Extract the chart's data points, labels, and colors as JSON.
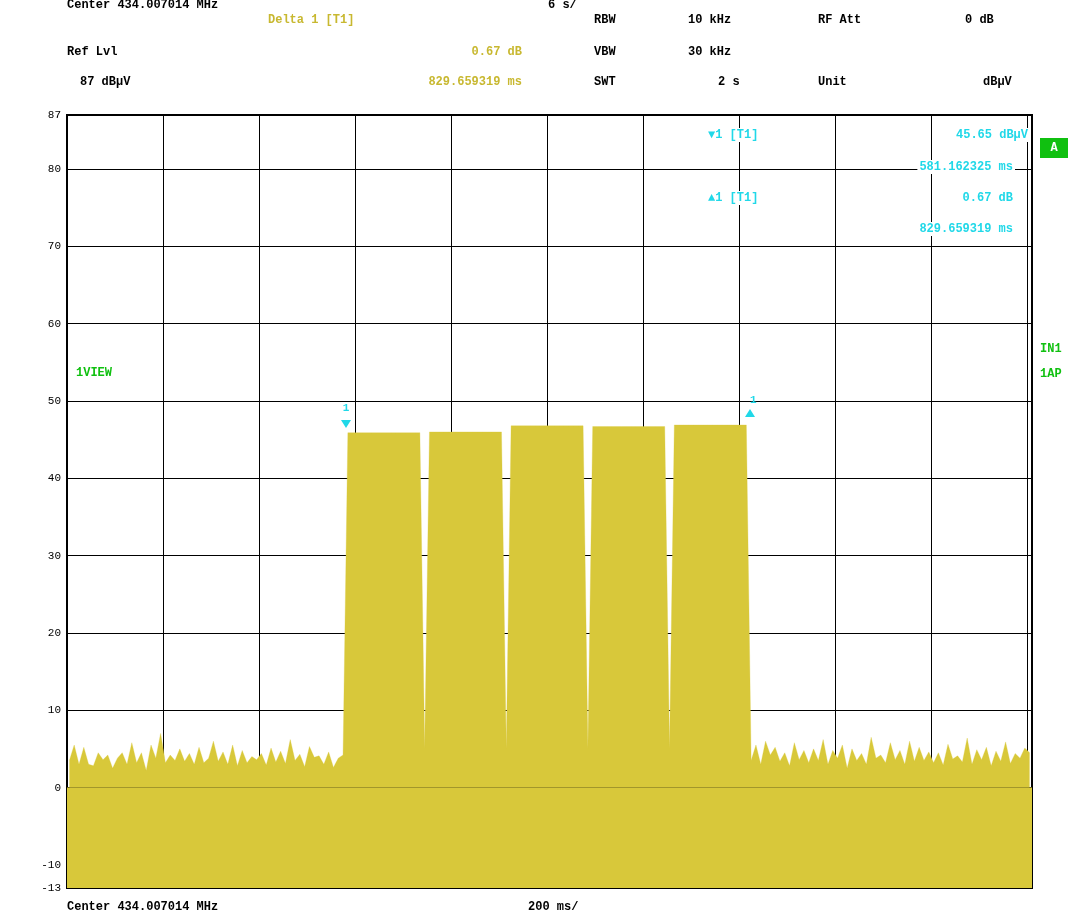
{
  "chart_data": {
    "type": "area",
    "categories": [
      null,
      null,
      null,
      null,
      null,
      null,
      null,
      null,
      null,
      null,
      null,
      null,
      null,
      null,
      null,
      null,
      null,
      null,
      null,
      null,
      null,
      null,
      null,
      null,
      null,
      null,
      null,
      null,
      null,
      null,
      null,
      null,
      null,
      null,
      null,
      null,
      null,
      null,
      null,
      null,
      null,
      null,
      null,
      null,
      null,
      null,
      null,
      null,
      null,
      null,
      null,
      null,
      null,
      null,
      null,
      null,
      null,
      null,
      null,
      null,
      null,
      null,
      null,
      null,
      null,
      null,
      null,
      null,
      null,
      null,
      null,
      null,
      null,
      null,
      null,
      null,
      null,
      null,
      null,
      null,
      null,
      null,
      null,
      null,
      null,
      null,
      null,
      null,
      null,
      null,
      null,
      null,
      null,
      null,
      null,
      null,
      null,
      null,
      null,
      null,
      null,
      null,
      null,
      null,
      null,
      null,
      null,
      null,
      null,
      null,
      null,
      null,
      null,
      null,
      null,
      null,
      null,
      null,
      null,
      null,
      null,
      null,
      null,
      null,
      null,
      null,
      null,
      null,
      null,
      null,
      null,
      null,
      null,
      null,
      null,
      null,
      null,
      null,
      null,
      null,
      null,
      null,
      null,
      null,
      null,
      null,
      null,
      null,
      null,
      null,
      null,
      null,
      null,
      null,
      null,
      null,
      null,
      null,
      null,
      null,
      null,
      null,
      null,
      null,
      null,
      null,
      null,
      null,
      null,
      null,
      null,
      null,
      null,
      null,
      null,
      null,
      null,
      null,
      null,
      null,
      null,
      null,
      null,
      null,
      null,
      null,
      null,
      null,
      null,
      null,
      null,
      null,
      null,
      null,
      null,
      null,
      null,
      null,
      null,
      null,
      null
    ],
    "values": [
      3.5,
      5.5,
      3,
      5.2,
      3,
      2.8,
      4.5,
      3.6,
      4.2,
      2.5,
      3.8,
      4.5,
      3,
      5.8,
      3.2,
      4.5,
      2.2,
      5.5,
      3.8,
      7,
      3.2,
      4.2,
      3.5,
      5,
      3.4,
      4.4,
      3,
      5.2,
      3.2,
      3.8,
      6,
      3.4,
      4.6,
      3,
      5.5,
      2.8,
      4.8,
      3.2,
      4,
      3.6,
      4.4,
      2.9,
      5.1,
      3.3,
      4.7,
      3.1,
      6.2,
      3.5,
      4.3,
      2.7,
      5.3,
      3.9,
      4.1,
      3,
      4.6,
      2.6,
      3.8,
      4.2,
      45.9,
      45.9,
      45.9,
      45.9,
      45.9,
      45.9,
      45.9,
      45.9,
      45.9,
      45.9,
      45.9,
      45.9,
      45.9,
      45.9,
      45.9,
      45.9,
      5,
      46,
      46,
      46,
      46,
      46,
      46,
      46,
      46,
      46,
      46,
      46,
      46,
      46,
      46,
      46,
      46,
      5,
      46.8,
      46.8,
      46.8,
      46.8,
      46.8,
      46.8,
      46.8,
      46.8,
      46.8,
      46.8,
      46.8,
      46.8,
      46.8,
      46.8,
      46.8,
      46.8,
      5,
      46.7,
      46.7,
      46.7,
      46.7,
      46.7,
      46.7,
      46.7,
      46.7,
      46.7,
      46.7,
      46.7,
      46.7,
      46.7,
      46.7,
      46.7,
      46.7,
      5,
      46.9,
      46.9,
      46.9,
      46.9,
      46.9,
      46.9,
      46.9,
      46.9,
      46.9,
      46.9,
      46.9,
      46.9,
      46.9,
      46.9,
      46.9,
      46.9,
      3.5,
      5.5,
      3,
      6,
      4.2,
      5.2,
      3.4,
      4.5,
      2.8,
      5.8,
      3.6,
      4.8,
      3.2,
      5,
      3.5,
      6.2,
      3,
      4.8,
      3.8,
      5.5,
      2.5,
      5,
      3.5,
      4.4,
      3,
      6.5,
      3.8,
      4.2,
      3.2,
      5.8,
      3.6,
      4.8,
      3,
      6,
      3.4,
      5.2,
      3.5,
      4.6,
      3.2,
      4.5,
      2.9,
      5.6,
      3.7,
      4.1,
      3.3,
      6.4,
      3,
      4.9,
      3.6,
      5.2,
      2.8,
      4.7,
      3.4,
      5.9,
      3.1,
      4.4,
      3.8,
      5.1,
      4.5
    ],
    "color": "#d8c83a",
    "ylim": [
      -13,
      87
    ],
    "yticks": [
      -13,
      -10,
      0,
      10,
      20,
      30,
      40,
      50,
      60,
      70,
      80,
      87
    ],
    "grid": true,
    "bands": [
      {
        "axis": "y",
        "from": -13,
        "to": 0,
        "color": "#d8c83a"
      }
    ],
    "tick_labels": "y",
    "annotations": [
      "Center 434.007014 MHz",
      "6 s/",
      "Delta 1 [T1]",
      "Ref Lvl",
      "0.67 dB",
      "87 dBµV",
      "829.659319 ms",
      "RBW",
      "10 kHz",
      "VBW",
      "30 kHz",
      "SWT",
      "2 s",
      "RF Att",
      "0 dB",
      "Unit",
      "dBµV",
      "▼1 [T1]",
      "45.65 dBµV",
      "581.162325 ms",
      "▲1 [T1]",
      "0.67 dB",
      "829.659319 ms",
      "A",
      "IN1",
      "1AP",
      "1VIEW",
      "Center 434.007014 MHz",
      "200 ms/",
      "1",
      "1"
    ]
  }
}
